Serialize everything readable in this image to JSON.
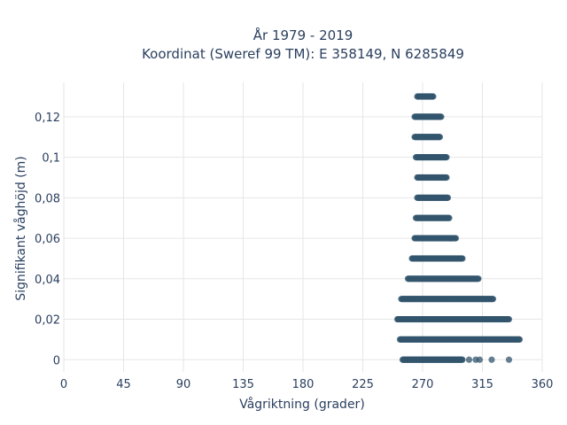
{
  "chart_data": {
    "type": "scatter",
    "title_lines": [
      "År 1979 - 2019",
      "Koordinat (Sweref 99 TM): E 358149, N 6285849"
    ],
    "xlabel": "Vågriktning (grader)",
    "ylabel": "Signifikant våghöjd (m)",
    "xlim": [
      0,
      360
    ],
    "ylim": [
      -0.006,
      0.137
    ],
    "x_ticks": [
      0,
      45,
      90,
      135,
      180,
      225,
      270,
      315,
      360
    ],
    "x_tick_labels": [
      "0",
      "45",
      "90",
      "135",
      "180",
      "225",
      "270",
      "315",
      "360"
    ],
    "y_ticks": [
      0,
      0.02,
      0.04,
      0.06,
      0.08,
      0.1,
      0.12
    ],
    "y_tick_labels": [
      "0",
      "0,02",
      "0,04",
      "0,06",
      "0,08",
      "0,1",
      "0,12"
    ],
    "grid": true,
    "marker_color": "#33566e",
    "bands": [
      {
        "y": 0.0,
        "x_min": 255,
        "x_max": 300,
        "outliers": [
          305,
          310,
          313,
          322,
          335
        ]
      },
      {
        "y": 0.01,
        "x_min": 253,
        "x_max": 343,
        "outliers": []
      },
      {
        "y": 0.02,
        "x_min": 251,
        "x_max": 335,
        "outliers": []
      },
      {
        "y": 0.03,
        "x_min": 254,
        "x_max": 323,
        "outliers": []
      },
      {
        "y": 0.04,
        "x_min": 259,
        "x_max": 312,
        "outliers": []
      },
      {
        "y": 0.05,
        "x_min": 262,
        "x_max": 300,
        "outliers": []
      },
      {
        "y": 0.06,
        "x_min": 264,
        "x_max": 295,
        "outliers": []
      },
      {
        "y": 0.07,
        "x_min": 265,
        "x_max": 290,
        "outliers": []
      },
      {
        "y": 0.08,
        "x_min": 266,
        "x_max": 289,
        "outliers": []
      },
      {
        "y": 0.09,
        "x_min": 266,
        "x_max": 288,
        "outliers": []
      },
      {
        "y": 0.1,
        "x_min": 265,
        "x_max": 288,
        "outliers": []
      },
      {
        "y": 0.11,
        "x_min": 264,
        "x_max": 283,
        "outliers": []
      },
      {
        "y": 0.12,
        "x_min": 264,
        "x_max": 284,
        "outliers": []
      },
      {
        "y": 0.13,
        "x_min": 266,
        "x_max": 278,
        "outliers": []
      }
    ]
  }
}
